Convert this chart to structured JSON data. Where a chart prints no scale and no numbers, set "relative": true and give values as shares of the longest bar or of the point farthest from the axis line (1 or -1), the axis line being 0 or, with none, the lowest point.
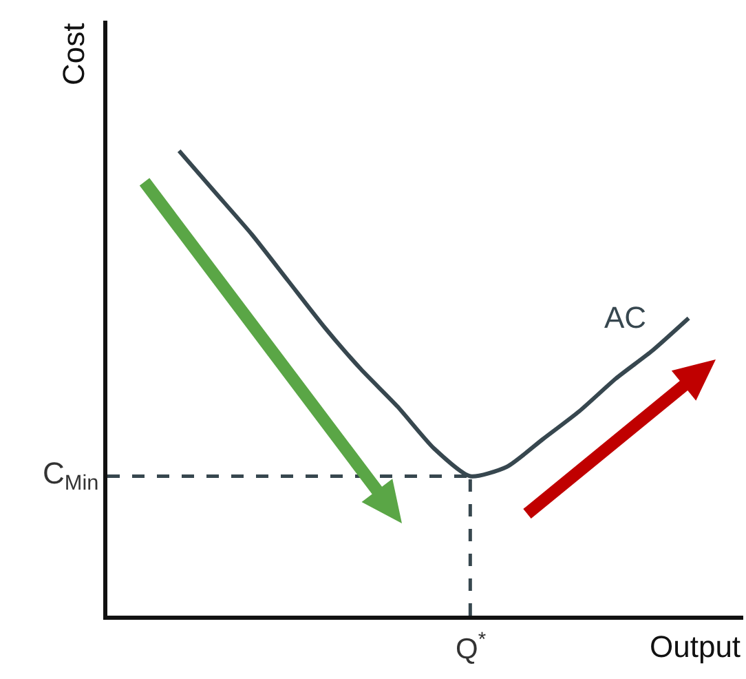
{
  "chart_data": {
    "type": "line",
    "relative": true,
    "xlabel": "Output",
    "ylabel": "Cost",
    "categories": [
      null,
      null,
      null,
      null,
      null,
      null,
      null,
      null,
      null,
      null,
      null,
      null,
      null,
      null,
      null
    ],
    "series": [
      {
        "name": "AC",
        "color": "#37474f",
        "values": [
          1,
          0.91,
          0.82,
          0.72,
          0.62,
          0.53,
          0.45,
          0.36,
          0.3,
          0.32,
          0.38,
          0.44,
          0.51,
          0.57,
          0.64
        ]
      }
    ],
    "ref_lines": [
      {
        "axis": "y",
        "value": 0.3,
        "label": "C$_{Min}$",
        "line_style": "dashed",
        "color": "#37474f"
      }
    ],
    "annotations": [
      "Q$^{*}$"
    ],
    "grid": false,
    "legend": false,
    "marker": "none",
    "line_style": "solid"
  }
}
